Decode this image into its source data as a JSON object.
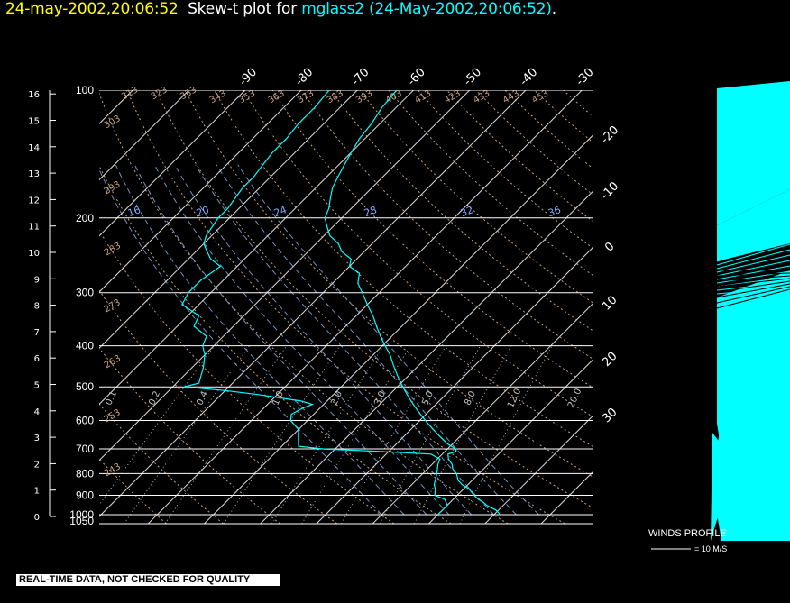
{
  "header": {
    "datetime": "24-may-2002,20:06:52",
    "plot_label": "Skew-t plot for",
    "station_info": "mglass2 (24-May-2002,20:06:52)",
    "period": "."
  },
  "banner": "REAL-TIME DATA, NOT CHECKED FOR QUALITY",
  "winds": {
    "title": "WINDS PROFILE",
    "scale_label": "= 10 M/S"
  },
  "colors": {
    "background": "#000000",
    "trace": "#00ffff",
    "grid": "#ffffff",
    "isotherm": "#d8d8d8",
    "theta": "#c8a080",
    "mixing_ratio": "#7090c0",
    "title_date": "#ffff00"
  },
  "chart_data": {
    "type": "skew-t",
    "pressure_axis_labels": [
      "100",
      "200",
      "300",
      "400",
      "500",
      "600",
      "700",
      "800",
      "900",
      "1000",
      "1050"
    ],
    "height_km_labels": [
      "0",
      "1",
      "2",
      "3",
      "4",
      "5",
      "6",
      "7",
      "8",
      "9",
      "10",
      "11",
      "12",
      "13",
      "14",
      "15",
      "16"
    ],
    "temperature_labels_top": [
      "-90",
      "-80",
      "-70",
      "-60",
      "-50",
      "-40",
      "-30"
    ],
    "temperature_labels_right": [
      "-20",
      "-10",
      "0",
      "10",
      "20",
      "30"
    ],
    "theta_labels": [
      "243",
      "253",
      "263",
      "273",
      "283",
      "293",
      "303",
      "313",
      "323",
      "333",
      "343",
      "353",
      "363",
      "373",
      "383",
      "393",
      "403",
      "413",
      "423",
      "433",
      "443",
      "453"
    ],
    "thetae_labels": [
      "16",
      "20",
      "24",
      "28",
      "32",
      "36"
    ],
    "mixing_ratio_labels": [
      "0.1",
      "0.2",
      "0.4",
      "1.0",
      "2.0",
      "3.0",
      "5.0",
      "8.0",
      "12.0",
      "20.0"
    ],
    "temperature_profile": [
      [
        1000,
        31
      ],
      [
        990,
        30.5
      ],
      [
        975,
        29.5
      ],
      [
        960,
        28
      ],
      [
        950,
        27
      ],
      [
        930,
        25.5
      ],
      [
        920,
        24.5
      ],
      [
        900,
        23
      ],
      [
        870,
        21
      ],
      [
        850,
        19
      ],
      [
        830,
        17.5
      ],
      [
        800,
        16
      ],
      [
        780,
        14.5
      ],
      [
        760,
        13.5
      ],
      [
        740,
        12
      ],
      [
        720,
        11
      ],
      [
        710,
        12
      ],
      [
        700,
        11.5
      ],
      [
        680,
        9
      ],
      [
        650,
        6
      ],
      [
        620,
        3
      ],
      [
        600,
        1
      ],
      [
        580,
        -1
      ],
      [
        560,
        -3
      ],
      [
        540,
        -5
      ],
      [
        520,
        -7
      ],
      [
        500,
        -9
      ],
      [
        480,
        -11
      ],
      [
        460,
        -13
      ],
      [
        440,
        -15
      ],
      [
        420,
        -17
      ],
      [
        400,
        -19.5
      ],
      [
        380,
        -22
      ],
      [
        360,
        -24.5
      ],
      [
        340,
        -27
      ],
      [
        320,
        -30
      ],
      [
        300,
        -33
      ],
      [
        285,
        -35.5
      ],
      [
        270,
        -37
      ],
      [
        260,
        -40
      ],
      [
        250,
        -41
      ],
      [
        240,
        -44
      ],
      [
        230,
        -46
      ],
      [
        220,
        -49
      ],
      [
        210,
        -51
      ],
      [
        200,
        -53
      ],
      [
        190,
        -54
      ],
      [
        180,
        -55.5
      ],
      [
        170,
        -57
      ],
      [
        160,
        -58
      ],
      [
        150,
        -59
      ],
      [
        140,
        -60
      ],
      [
        130,
        -61
      ],
      [
        120,
        -61.5
      ],
      [
        110,
        -62.5
      ],
      [
        100,
        -63
      ]
    ],
    "dewpoint_profile": [
      [
        1000,
        20
      ],
      [
        950,
        20
      ],
      [
        920,
        18.5
      ],
      [
        900,
        16
      ],
      [
        870,
        15
      ],
      [
        850,
        14
      ],
      [
        800,
        12.5
      ],
      [
        760,
        11
      ],
      [
        740,
        10.5
      ],
      [
        720,
        8
      ],
      [
        710,
        -1
      ],
      [
        700,
        -12
      ],
      [
        690,
        -17
      ],
      [
        670,
        -18
      ],
      [
        650,
        -19
      ],
      [
        630,
        -20
      ],
      [
        600,
        -23
      ],
      [
        580,
        -24
      ],
      [
        560,
        -23
      ],
      [
        550,
        -22
      ],
      [
        540,
        -24.5
      ],
      [
        520,
        -34
      ],
      [
        510,
        -40
      ],
      [
        500,
        -48
      ],
      [
        490,
        -46
      ],
      [
        470,
        -47
      ],
      [
        450,
        -48
      ],
      [
        420,
        -50
      ],
      [
        400,
        -52
      ],
      [
        380,
        -53
      ],
      [
        360,
        -57
      ],
      [
        340,
        -58
      ],
      [
        320,
        -63
      ],
      [
        300,
        -64
      ],
      [
        280,
        -64
      ],
      [
        260,
        -63
      ],
      [
        250,
        -66
      ],
      [
        240,
        -68
      ],
      [
        230,
        -70
      ],
      [
        220,
        -71
      ],
      [
        210,
        -71.5
      ],
      [
        200,
        -72
      ],
      [
        190,
        -72
      ],
      [
        180,
        -72.5
      ],
      [
        170,
        -73
      ],
      [
        160,
        -73
      ],
      [
        150,
        -73.5
      ],
      [
        140,
        -74
      ],
      [
        130,
        -74
      ],
      [
        120,
        -74.5
      ],
      [
        110,
        -74.5
      ],
      [
        100,
        -75
      ]
    ],
    "ylim_hpa": [
      1050,
      100
    ],
    "xlim_c_at_1050": [
      -40,
      48
    ],
    "skew": "45-degree isotherms",
    "grid": true
  }
}
